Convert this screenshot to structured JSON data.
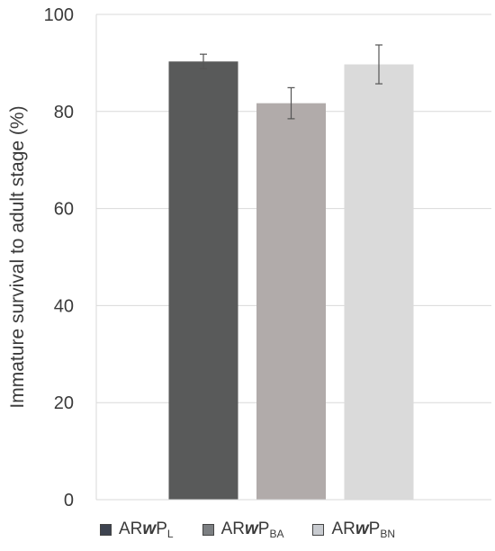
{
  "chart_data": {
    "type": "bar",
    "categories": [
      "ARwPL",
      "ARwPBA",
      "ARwPBN"
    ],
    "series": [
      {
        "name": "Immature survival to adult stage (%)",
        "values": [
          90.3,
          81.7,
          89.7
        ],
        "error": [
          1.5,
          3.2,
          4.0
        ],
        "colors": [
          "#595a5a",
          "#b1abaa",
          "#dadada"
        ]
      }
    ],
    "ylabel": "Immature survival to adult stage (%)",
    "xlabel": "",
    "ylim": [
      0,
      100
    ],
    "yticks": [
      0,
      20,
      40,
      60,
      80,
      100
    ],
    "grid": true,
    "legend_position": "bottom"
  },
  "legend": [
    {
      "prefix": "AR",
      "italic": "w",
      "main": "P",
      "sub": "L",
      "color": "#3d4350"
    },
    {
      "prefix": "AR",
      "italic": "w",
      "main": "P",
      "sub": "BA",
      "color": "#7c7f82"
    },
    {
      "prefix": "AR",
      "italic": "w",
      "main": "P",
      "sub": "BN",
      "color": "#c8cbd0"
    }
  ]
}
